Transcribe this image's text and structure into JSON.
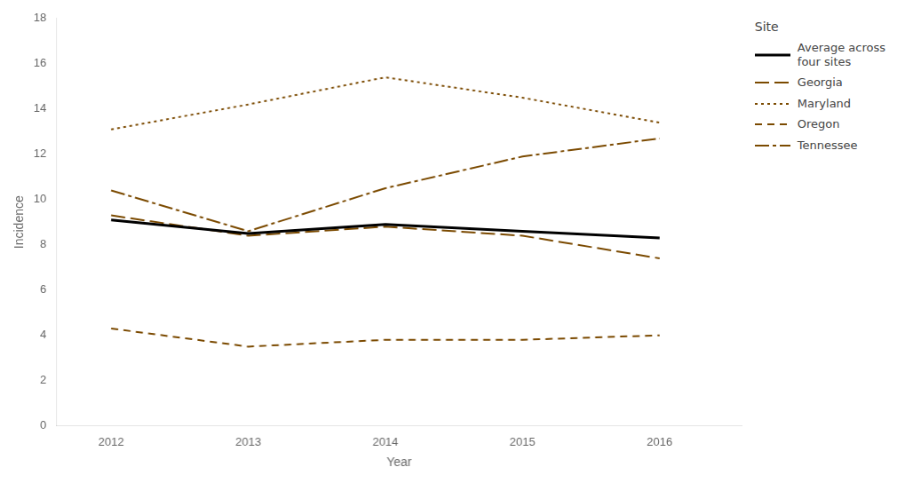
{
  "chart_data": {
    "type": "line",
    "x": [
      2012,
      2013,
      2014,
      2015,
      2016
    ],
    "series": [
      {
        "name": "Average across\nfour sites",
        "color": "#000000",
        "line_style": "solid",
        "values": [
          9.1,
          8.5,
          8.9,
          8.6,
          8.3
        ]
      },
      {
        "name": "Georgia",
        "color": "#7B4A00",
        "line_style": "long_dash",
        "values": [
          9.3,
          8.4,
          8.8,
          8.4,
          7.4
        ]
      },
      {
        "name": "Maryland",
        "color": "#7B4A00",
        "line_style": "dotted",
        "values": [
          13.1,
          14.2,
          15.4,
          14.5,
          13.4
        ]
      },
      {
        "name": "Oregon",
        "color": "#7B4A00",
        "line_style": "dashed",
        "values": [
          4.3,
          3.5,
          3.8,
          3.8,
          4.0
        ]
      },
      {
        "name": "Tennessee",
        "color": "#7B4A00",
        "line_style": "dashdot",
        "values": [
          10.4,
          8.6,
          10.5,
          11.9,
          12.7
        ]
      }
    ],
    "xlabel": "Year",
    "ylabel": "Incidence",
    "xlim": [
      2011.6,
      2016.6
    ],
    "xticks": [
      2012,
      2013,
      2014,
      2015,
      2016
    ],
    "ylim": [
      0,
      18
    ],
    "yticks": [
      0,
      2,
      4,
      6,
      8,
      10,
      12,
      14,
      16,
      18
    ],
    "grid": false,
    "legend": "right",
    "legend_title": "Site"
  }
}
